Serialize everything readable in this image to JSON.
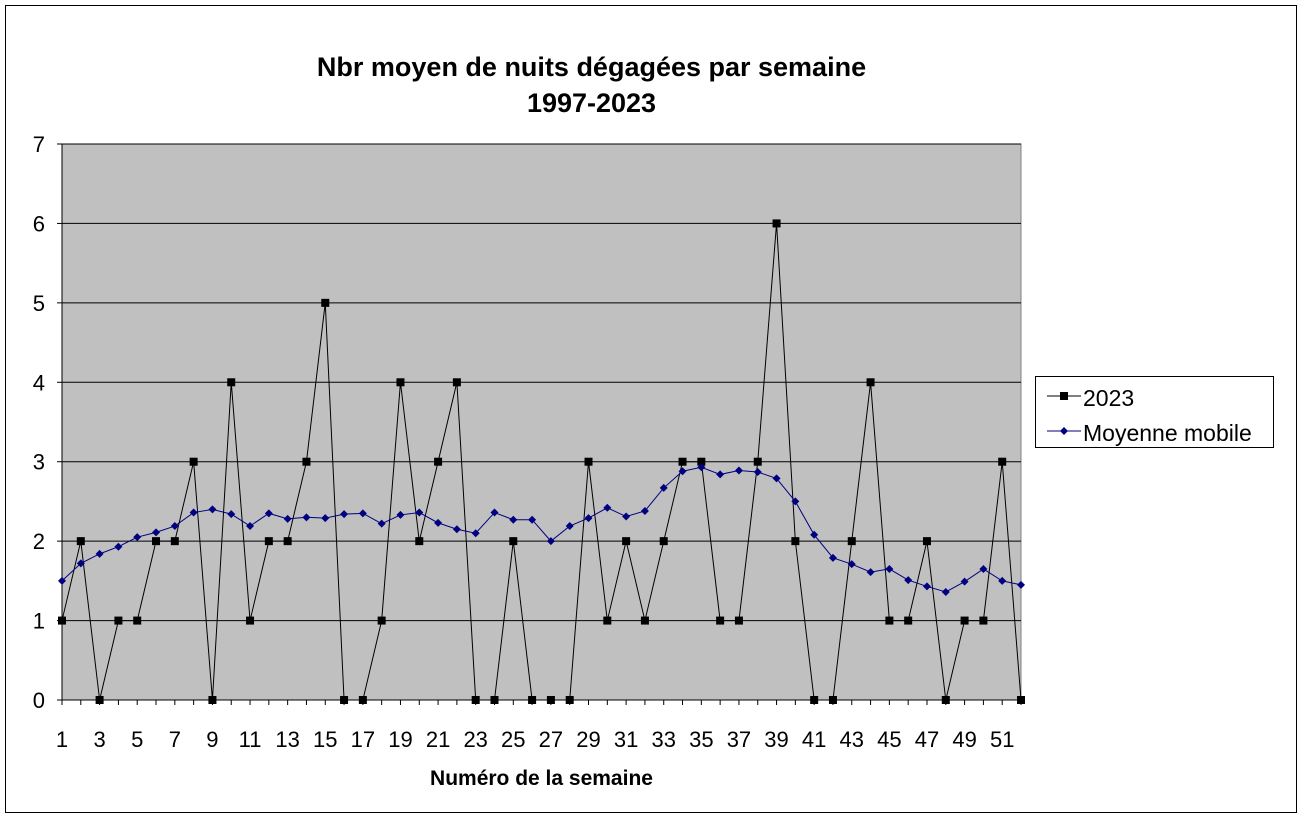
{
  "chart_data": {
    "type": "line",
    "title": "Nbr moyen de nuits dégagées par semaine",
    "subtitle": "1997-2023",
    "xlabel": "Numéro de la semaine",
    "ylabel": "",
    "ylim": [
      0,
      7
    ],
    "yticks": [
      0,
      1,
      2,
      3,
      4,
      5,
      6,
      7
    ],
    "xticks": [
      1,
      3,
      5,
      7,
      9,
      11,
      13,
      15,
      17,
      19,
      21,
      23,
      25,
      27,
      29,
      31,
      33,
      35,
      37,
      39,
      41,
      43,
      45,
      47,
      49,
      51
    ],
    "x": [
      1,
      2,
      3,
      4,
      5,
      6,
      7,
      8,
      9,
      10,
      11,
      12,
      13,
      14,
      15,
      16,
      17,
      18,
      19,
      20,
      21,
      22,
      23,
      24,
      25,
      26,
      27,
      28,
      29,
      30,
      31,
      32,
      33,
      34,
      35,
      36,
      37,
      38,
      39,
      40,
      41,
      42,
      43,
      44,
      45,
      46,
      47,
      48,
      49,
      50,
      51,
      52
    ],
    "grid": true,
    "legend_position": "right",
    "plot_background": "#c0c0c0",
    "series": [
      {
        "name": "2023",
        "color": "#000000",
        "marker": "square",
        "values": [
          1,
          2,
          0,
          1,
          1,
          2,
          2,
          3,
          0,
          4,
          1,
          2,
          2,
          3,
          5,
          0,
          0,
          1,
          4,
          2,
          3,
          4,
          0,
          0,
          2,
          0,
          0,
          0,
          3,
          1,
          2,
          1,
          2,
          3,
          3,
          1,
          1,
          3,
          6,
          2,
          0,
          0,
          2,
          4,
          1,
          1,
          2,
          0,
          1,
          1,
          3,
          0
        ]
      },
      {
        "name": "Moyenne mobile",
        "color": "#000080",
        "marker": "diamond",
        "values": [
          1.5,
          1.72,
          1.84,
          1.93,
          2.05,
          2.11,
          2.19,
          2.36,
          2.4,
          2.34,
          2.19,
          2.35,
          2.28,
          2.3,
          2.29,
          2.34,
          2.35,
          2.22,
          2.33,
          2.36,
          2.23,
          2.15,
          2.1,
          2.36,
          2.27,
          2.27,
          2.0,
          2.19,
          2.29,
          2.42,
          2.31,
          2.38,
          2.67,
          2.88,
          2.93,
          2.84,
          2.89,
          2.87,
          2.79,
          2.5,
          2.08,
          1.79,
          1.71,
          1.61,
          1.65,
          1.51,
          1.43,
          1.36,
          1.49,
          1.65,
          1.5,
          1.45
        ]
      }
    ]
  }
}
